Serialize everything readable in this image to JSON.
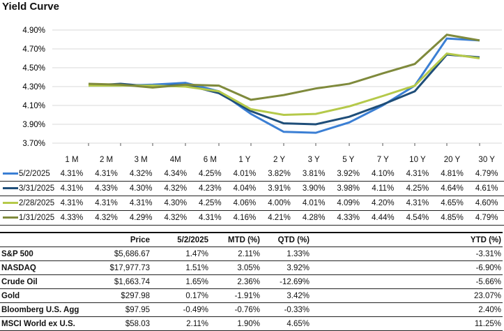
{
  "chart_data": {
    "type": "line",
    "title": "Yield Curve",
    "categories": [
      "1 M",
      "2 M",
      "3 M",
      "4M",
      "6 M",
      "1 Y",
      "2 Y",
      "3 Y",
      "5 Y",
      "7 Y",
      "10 Y",
      "20 Y",
      "30 Y"
    ],
    "yticks": [
      "4.90%",
      "4.70%",
      "4.50%",
      "4.30%",
      "4.10%",
      "3.90%",
      "3.70%"
    ],
    "ylim": [
      3.7,
      4.9
    ],
    "grid": true,
    "legend": "table-below",
    "series": [
      {
        "name": "5/2/2025",
        "color": "#3b7fd4",
        "values": [
          4.31,
          4.31,
          4.32,
          4.34,
          4.25,
          4.01,
          3.82,
          3.81,
          3.92,
          4.1,
          4.31,
          4.81,
          4.79
        ],
        "labels": [
          "4.31%",
          "4.31%",
          "4.32%",
          "4.34%",
          "4.25%",
          "4.01%",
          "3.82%",
          "3.81%",
          "3.92%",
          "4.10%",
          "4.31%",
          "4.81%",
          "4.79%"
        ]
      },
      {
        "name": "3/31/2025",
        "color": "#1f4e79",
        "values": [
          4.31,
          4.33,
          4.3,
          4.32,
          4.23,
          4.04,
          3.91,
          3.9,
          3.98,
          4.11,
          4.25,
          4.64,
          4.61
        ],
        "labels": [
          "4.31%",
          "4.33%",
          "4.30%",
          "4.32%",
          "4.23%",
          "4.04%",
          "3.91%",
          "3.90%",
          "3.98%",
          "4.11%",
          "4.25%",
          "4.64%",
          "4.61%"
        ]
      },
      {
        "name": "2/28/2025",
        "color": "#b5c94a",
        "values": [
          4.31,
          4.31,
          4.31,
          4.3,
          4.25,
          4.06,
          4.0,
          4.01,
          4.09,
          4.2,
          4.31,
          4.65,
          4.6
        ],
        "labels": [
          "4.31%",
          "4.31%",
          "4.31%",
          "4.30%",
          "4.25%",
          "4.06%",
          "4.00%",
          "4.01%",
          "4.09%",
          "4.20%",
          "4.31%",
          "4.65%",
          "4.60%"
        ]
      },
      {
        "name": "1/31/2025",
        "color": "#7f8a3c",
        "values": [
          4.33,
          4.32,
          4.29,
          4.32,
          4.31,
          4.16,
          4.21,
          4.28,
          4.33,
          4.44,
          4.54,
          4.85,
          4.79
        ],
        "labels": [
          "4.33%",
          "4.32%",
          "4.29%",
          "4.32%",
          "4.31%",
          "4.16%",
          "4.21%",
          "4.28%",
          "4.33%",
          "4.44%",
          "4.54%",
          "4.85%",
          "4.79%"
        ]
      }
    ]
  },
  "market": {
    "headers": [
      "",
      "Price",
      "5/2/2025",
      "MTD (%)",
      "QTD (%)",
      "YTD (%)"
    ],
    "rows": [
      [
        "S&P 500",
        "$5,686.67",
        "1.47%",
        "2.11%",
        "1.33%",
        "-3.31%"
      ],
      [
        "NASDAQ",
        "$17,977.73",
        "1.51%",
        "3.05%",
        "3.92%",
        "-6.90%"
      ],
      [
        "Crude Oil",
        "$1,663.74",
        "1.65%",
        "2.36%",
        "-12.69%",
        "-5.66%"
      ],
      [
        "Gold",
        "$297.98",
        "0.17%",
        "-1.91%",
        "3.42%",
        "23.07%"
      ],
      [
        "Bloomberg U.S. Agg",
        "$97.95",
        "-0.49%",
        "-0.76%",
        "-0.33%",
        "2.40%"
      ],
      [
        "MSCI World ex U.S.",
        "$58.03",
        "2.11%",
        "1.90%",
        "4.65%",
        "11.25%"
      ]
    ]
  }
}
